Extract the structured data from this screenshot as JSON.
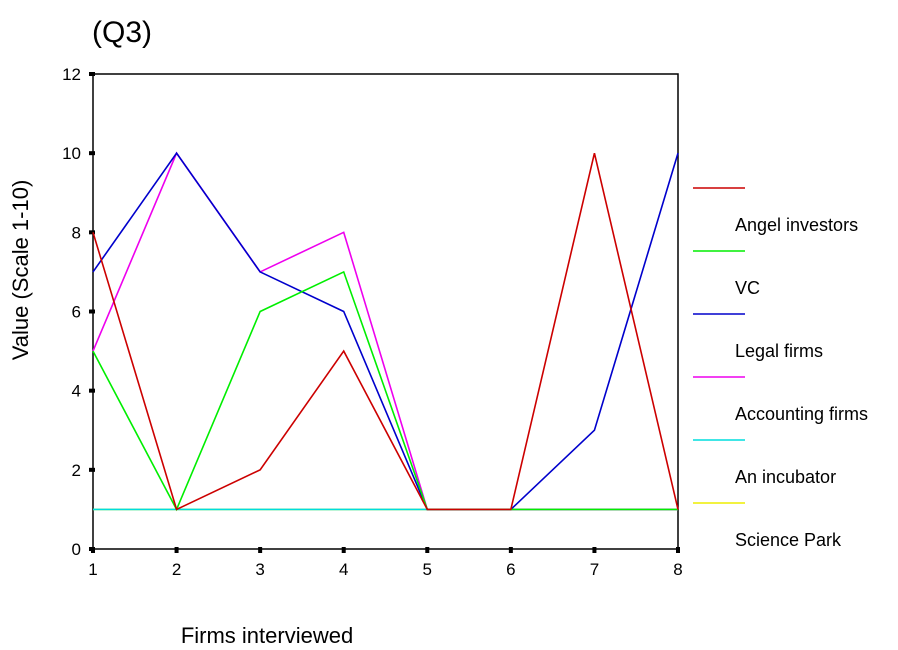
{
  "chart_data": {
    "type": "line",
    "title": "(Q3)",
    "xlabel": "Firms interviewed",
    "ylabel": "Value (Scale 1-10)",
    "x": [
      1,
      2,
      3,
      4,
      5,
      6,
      7,
      8
    ],
    "xlim": [
      1,
      8
    ],
    "ylim": [
      0,
      12
    ],
    "yticks": [
      0,
      2,
      4,
      6,
      8,
      10,
      12
    ],
    "grid": false,
    "legend_position": "right",
    "series": [
      {
        "name": "Angel investors",
        "color": "#cc0000",
        "values": [
          8,
          1,
          2,
          5,
          1,
          1,
          10,
          1
        ]
      },
      {
        "name": "VC",
        "color": "#00ee00",
        "values": [
          5,
          1,
          6,
          7,
          1,
          1,
          1,
          1
        ]
      },
      {
        "name": "Legal firms",
        "color": "#0000cc",
        "values": [
          7,
          10,
          7,
          6,
          1,
          1,
          3,
          10
        ]
      },
      {
        "name": "Accounting firms",
        "color": "#ee00ee",
        "values": [
          5,
          10,
          7,
          8,
          1,
          1,
          1,
          1
        ]
      },
      {
        "name": "An incubator",
        "color": "#00dddd",
        "values": [
          1,
          1,
          1,
          1,
          1,
          1,
          1,
          1
        ]
      },
      {
        "name": "Science Park",
        "color": "#eeee00",
        "values": [
          1,
          1,
          1,
          1,
          1,
          1,
          1,
          1
        ]
      }
    ]
  }
}
